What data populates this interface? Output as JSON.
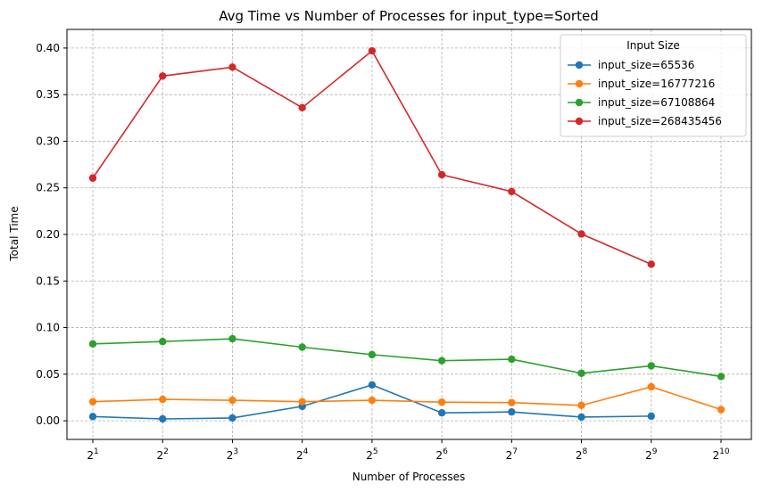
{
  "chart_data": {
    "type": "line",
    "title": "Avg Time vs Number of Processes for input_type=Sorted",
    "xlabel": "Number of Processes",
    "ylabel": "Total Time",
    "x_scale": "log2",
    "x": [
      2,
      4,
      8,
      16,
      32,
      64,
      128,
      256,
      512,
      1024
    ],
    "x_tick_exponents": [
      "1",
      "2",
      "3",
      "4",
      "5",
      "6",
      "7",
      "8",
      "9",
      "10"
    ],
    "x_tick_base": "2",
    "ylim": [
      -0.02,
      0.42
    ],
    "y_ticks": [
      "0.00",
      "0.05",
      "0.10",
      "0.15",
      "0.20",
      "0.25",
      "0.30",
      "0.35",
      "0.40"
    ],
    "grid": true,
    "legend": {
      "title": "Input Size",
      "placement": "top-right"
    },
    "series": [
      {
        "name": "input_size=65536",
        "color": "#1f77b4",
        "values": [
          0.0045,
          0.002,
          0.003,
          0.0155,
          0.0385,
          0.0085,
          0.0095,
          0.004,
          0.005,
          null
        ]
      },
      {
        "name": "input_size=16777216",
        "color": "#ff7f0e",
        "values": [
          0.0205,
          0.023,
          0.022,
          0.0205,
          0.022,
          0.02,
          0.0195,
          0.0165,
          0.0365,
          0.012
        ]
      },
      {
        "name": "input_size=67108864",
        "color": "#2ca02c",
        "values": [
          0.0825,
          0.085,
          0.088,
          0.079,
          0.071,
          0.0645,
          0.066,
          0.051,
          0.059,
          0.0475
        ]
      },
      {
        "name": "input_size=268435456",
        "color": "#d62728",
        "values": [
          0.2605,
          0.37,
          0.3795,
          0.336,
          0.397,
          0.264,
          0.246,
          0.2005,
          0.168,
          null
        ]
      }
    ]
  }
}
